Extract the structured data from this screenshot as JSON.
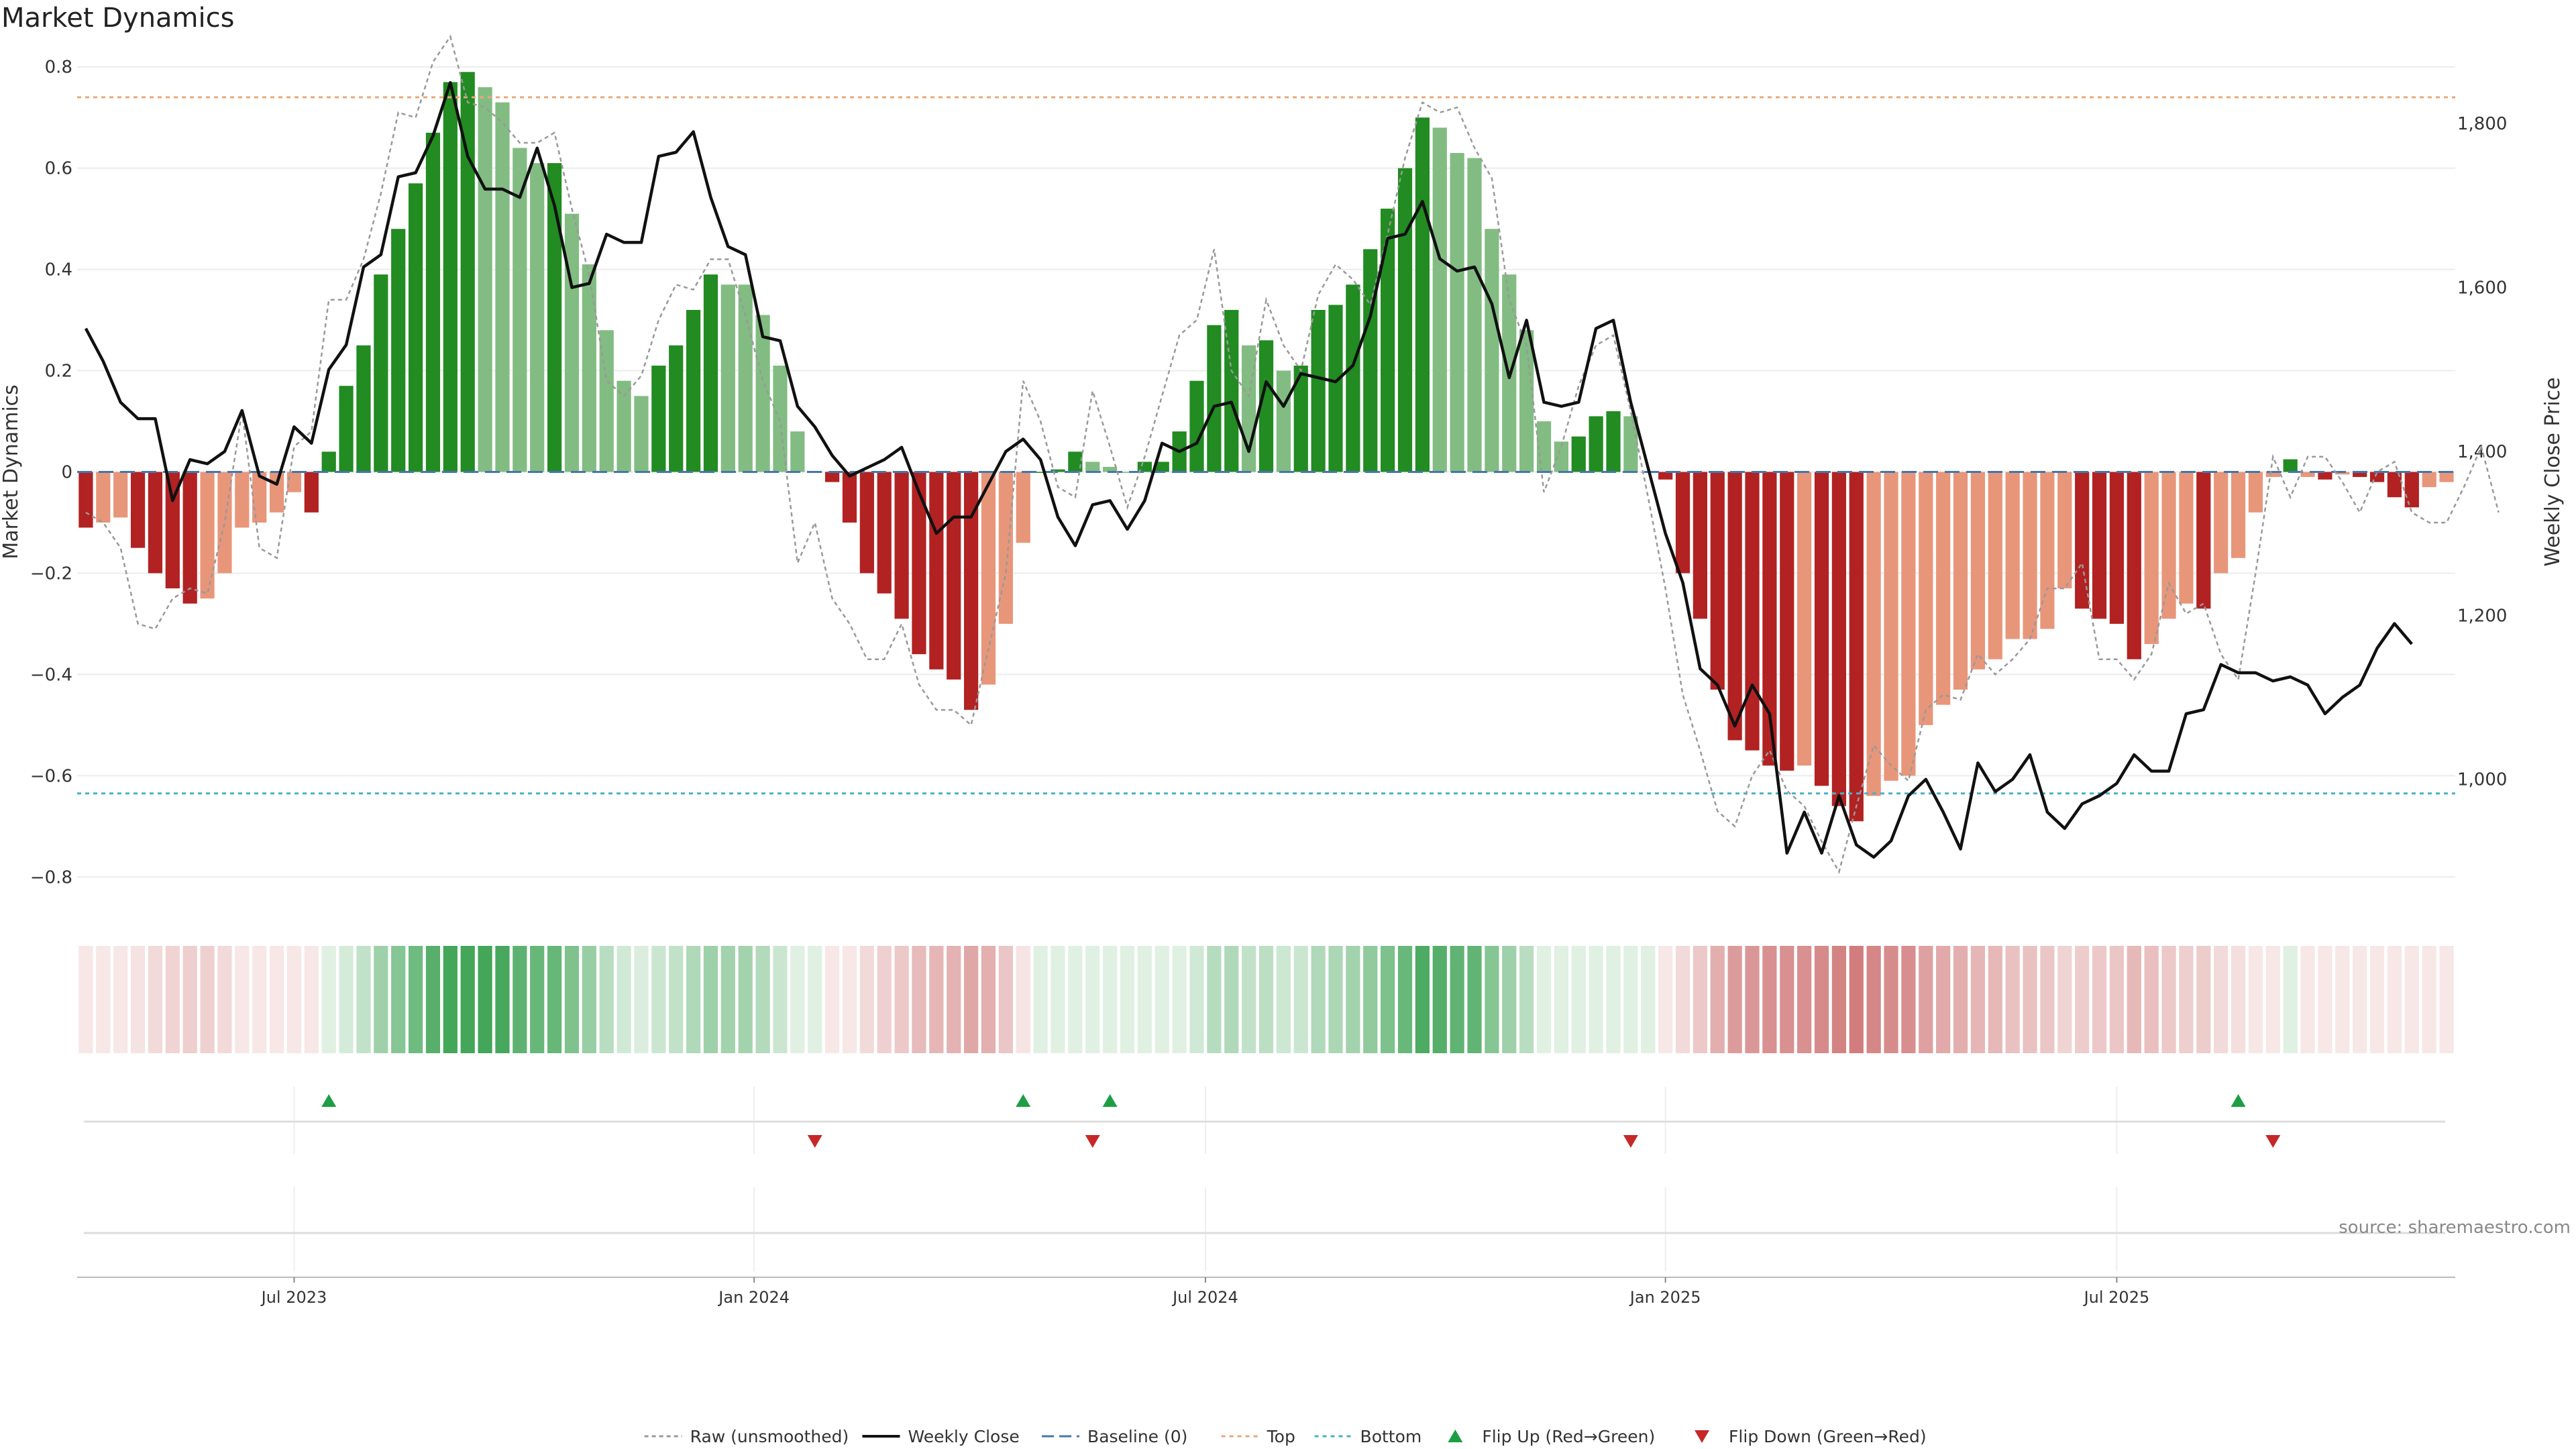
{
  "chart_data": {
    "type": "bar",
    "title": "Market Dynamics",
    "source": "source: sharemaestro.com",
    "ylabel_left": "Market Dynamics",
    "ylabel_right": "Weekly Close Price",
    "ylim_left": [
      -0.85,
      0.85
    ],
    "ylim_right": [
      850,
      1900
    ],
    "left_ticks": [
      {
        "v": 0.8,
        "t": "0.8"
      },
      {
        "v": 0.6,
        "t": "0.6"
      },
      {
        "v": 0.4,
        "t": "0.4"
      },
      {
        "v": 0.2,
        "t": "0.2"
      },
      {
        "v": 0,
        "t": "0"
      },
      {
        "v": -0.2,
        "t": "−0.2"
      },
      {
        "v": -0.4,
        "t": "−0.4"
      },
      {
        "v": -0.6,
        "t": "−0.6"
      },
      {
        "v": -0.8,
        "t": "−0.8"
      }
    ],
    "right_ticks": [
      {
        "v": 1800,
        "t": "1,800"
      },
      {
        "v": 1600,
        "t": "1,600"
      },
      {
        "v": 1400,
        "t": "1,400"
      },
      {
        "v": 1200,
        "t": "1,200"
      },
      {
        "v": 1000,
        "t": "1,000"
      }
    ],
    "x_ticks": [
      {
        "i": 12,
        "t": "Jul 2023"
      },
      {
        "i": 38.5,
        "t": "Jan 2024"
      },
      {
        "i": 64.5,
        "t": "Jul 2024"
      },
      {
        "i": 91,
        "t": "Jan 2025"
      },
      {
        "i": 117,
        "t": "Jul 2025"
      }
    ],
    "top_level": 0.74,
    "bottom_level": -0.635,
    "baseline": 0,
    "momentum": [
      -0.11,
      -0.1,
      -0.09,
      -0.15,
      -0.2,
      -0.23,
      -0.26,
      -0.25,
      -0.2,
      -0.11,
      -0.1,
      -0.08,
      -0.04,
      -0.08,
      0.04,
      0.17,
      0.25,
      0.39,
      0.48,
      0.57,
      0.67,
      0.77,
      0.79,
      0.76,
      0.73,
      0.64,
      0.61,
      0.61,
      0.51,
      0.41,
      0.28,
      0.18,
      0.15,
      0.21,
      0.25,
      0.32,
      0.39,
      0.37,
      0.37,
      0.31,
      0.21,
      0.08,
      0,
      -0.02,
      -0.1,
      -0.2,
      -0.24,
      -0.29,
      -0.36,
      -0.39,
      -0.41,
      -0.47,
      -0.42,
      -0.3,
      -0.14,
      0,
      0.005,
      0.04,
      0.02,
      0.01,
      0,
      0.02,
      0.02,
      0.08,
      0.18,
      0.29,
      0.32,
      0.25,
      0.26,
      0.2,
      0.21,
      0.32,
      0.33,
      0.37,
      0.44,
      0.52,
      0.6,
      0.7,
      0.68,
      0.63,
      0.62,
      0.48,
      0.39,
      0.28,
      0.1,
      0.06,
      0.07,
      0.11,
      0.12,
      0.11,
      0,
      -0.015,
      -0.2,
      -0.29,
      -0.43,
      -0.53,
      -0.55,
      -0.58,
      -0.59,
      -0.58,
      -0.62,
      -0.66,
      -0.69,
      -0.64,
      -0.61,
      -0.6,
      -0.5,
      -0.46,
      -0.43,
      -0.39,
      -0.37,
      -0.33,
      -0.33,
      -0.31,
      -0.23,
      -0.27,
      -0.29,
      -0.3,
      -0.37,
      -0.34,
      -0.29,
      -0.26,
      -0.27,
      -0.2,
      -0.17,
      -0.08,
      -0.01,
      0.025,
      -0.01,
      -0.015,
      -0.005,
      -0.01,
      -0.02,
      -0.05,
      -0.07,
      -0.03,
      -0.02
    ],
    "momentum_rising": [
      false,
      true,
      true,
      false,
      false,
      false,
      false,
      true,
      true,
      true,
      true,
      true,
      true,
      false,
      true,
      true,
      true,
      true,
      true,
      true,
      true,
      true,
      true,
      false,
      false,
      false,
      false,
      true,
      false,
      false,
      false,
      false,
      false,
      true,
      true,
      true,
      true,
      false,
      false,
      false,
      false,
      false,
      false,
      false,
      false,
      false,
      false,
      false,
      false,
      false,
      false,
      false,
      true,
      true,
      true,
      true,
      true,
      true,
      false,
      false,
      false,
      true,
      true,
      true,
      true,
      true,
      true,
      false,
      true,
      false,
      true,
      true,
      true,
      true,
      true,
      true,
      true,
      true,
      false,
      false,
      false,
      false,
      false,
      false,
      false,
      false,
      true,
      true,
      true,
      false,
      false,
      false,
      false,
      false,
      false,
      false,
      false,
      false,
      false,
      true,
      false,
      false,
      false,
      true,
      true,
      true,
      true,
      true,
      true,
      true,
      true,
      true,
      true,
      true,
      true,
      false,
      false,
      false,
      false,
      true,
      true,
      true,
      false,
      true,
      true,
      true,
      true,
      true,
      true,
      false,
      true,
      false,
      false,
      false,
      false,
      true,
      true
    ],
    "raw": [
      -0.08,
      -0.1,
      -0.15,
      -0.3,
      -0.31,
      -0.25,
      -0.23,
      -0.24,
      -0.1,
      0.12,
      -0.15,
      -0.17,
      0.05,
      0.08,
      0.34,
      0.34,
      0.42,
      0.55,
      0.71,
      0.7,
      0.81,
      0.86,
      0.73,
      0.72,
      0.69,
      0.65,
      0.65,
      0.67,
      0.52,
      0.39,
      0.18,
      0.15,
      0.19,
      0.3,
      0.37,
      0.36,
      0.42,
      0.42,
      0.31,
      0.18,
      0.1,
      -0.18,
      -0.1,
      -0.25,
      -0.3,
      -0.37,
      -0.37,
      -0.3,
      -0.42,
      -0.47,
      -0.47,
      -0.5,
      -0.35,
      -0.2,
      0.18,
      0.1,
      -0.03,
      -0.05,
      0.16,
      0.05,
      -0.07,
      0.03,
      0.15,
      0.27,
      0.3,
      0.44,
      0.2,
      0.15,
      0.34,
      0.25,
      0.2,
      0.35,
      0.41,
      0.38,
      0.33,
      0.47,
      0.62,
      0.73,
      0.71,
      0.72,
      0.64,
      0.58,
      0.34,
      0.25,
      -0.04,
      0.05,
      0.17,
      0.25,
      0.27,
      0.12,
      -0.05,
      -0.23,
      -0.44,
      -0.55,
      -0.67,
      -0.7,
      -0.6,
      -0.55,
      -0.63,
      -0.66,
      -0.73,
      -0.79,
      -0.66,
      -0.54,
      -0.58,
      -0.61,
      -0.47,
      -0.44,
      -0.45,
      -0.36,
      -0.4,
      -0.37,
      -0.33,
      -0.23,
      -0.23,
      -0.18,
      -0.37,
      -0.37,
      -0.41,
      -0.36,
      -0.22,
      -0.28,
      -0.26,
      -0.36,
      -0.41,
      -0.2,
      0.03,
      -0.05,
      0.03,
      0.03,
      -0.02,
      -0.08,
      0.0,
      0.02,
      -0.08,
      -0.1,
      -0.1,
      -0.03,
      0.05,
      -0.08
    ],
    "close": [
      1550,
      1510,
      1460,
      1440,
      1440,
      1340,
      1390,
      1385,
      1400,
      1450,
      1370,
      1360,
      1430,
      1410,
      1500,
      1530,
      1625,
      1640,
      1735,
      1740,
      1785,
      1850,
      1760,
      1720,
      1720,
      1710,
      1770,
      1700,
      1600,
      1605,
      1665,
      1655,
      1655,
      1760,
      1765,
      1790,
      1710,
      1650,
      1640,
      1540,
      1535,
      1455,
      1430,
      1395,
      1370,
      1380,
      1390,
      1405,
      1350,
      1300,
      1320,
      1320,
      1360,
      1400,
      1415,
      1390,
      1320,
      1285,
      1335,
      1340,
      1305,
      1340,
      1410,
      1400,
      1410,
      1455,
      1460,
      1400,
      1485,
      1455,
      1495,
      1490,
      1485,
      1505,
      1565,
      1660,
      1665,
      1705,
      1635,
      1620,
      1625,
      1580,
      1490,
      1560,
      1460,
      1455,
      1460,
      1550,
      1560,
      1460,
      1380,
      1300,
      1240,
      1135,
      1115,
      1065,
      1115,
      1080,
      910,
      960,
      910,
      980,
      920,
      905,
      925,
      980,
      1000,
      960,
      915,
      1020,
      985,
      1000,
      1030,
      960,
      940,
      970,
      980,
      995,
      1030,
      1010,
      1010,
      1080,
      1085,
      1140,
      1130,
      1130,
      1120,
      1125,
      1115,
      1080,
      1100,
      1115,
      1160,
      1190,
      1165
    ],
    "flip_up": [
      14,
      54,
      59,
      124
    ],
    "flip_down": [
      42,
      58,
      89,
      126
    ],
    "legend": [
      "Raw (unsmoothed)",
      "Weekly Close",
      "Baseline (0)",
      "Top",
      "Bottom",
      "Flip Up (Red→Green)",
      "Flip Down (Green→Red)"
    ],
    "colors": {
      "strong_green": "#228b22",
      "light_green": "#82bc82",
      "strong_red": "#b22222",
      "light_red": "#e8967a",
      "close_line": "#111111",
      "raw_line": "#999999",
      "baseline": "#4477aa",
      "top": "#e8a87c",
      "bottom": "#4ab0c8",
      "flip_up": "#1e9e44",
      "flip_down": "#c62828"
    }
  }
}
